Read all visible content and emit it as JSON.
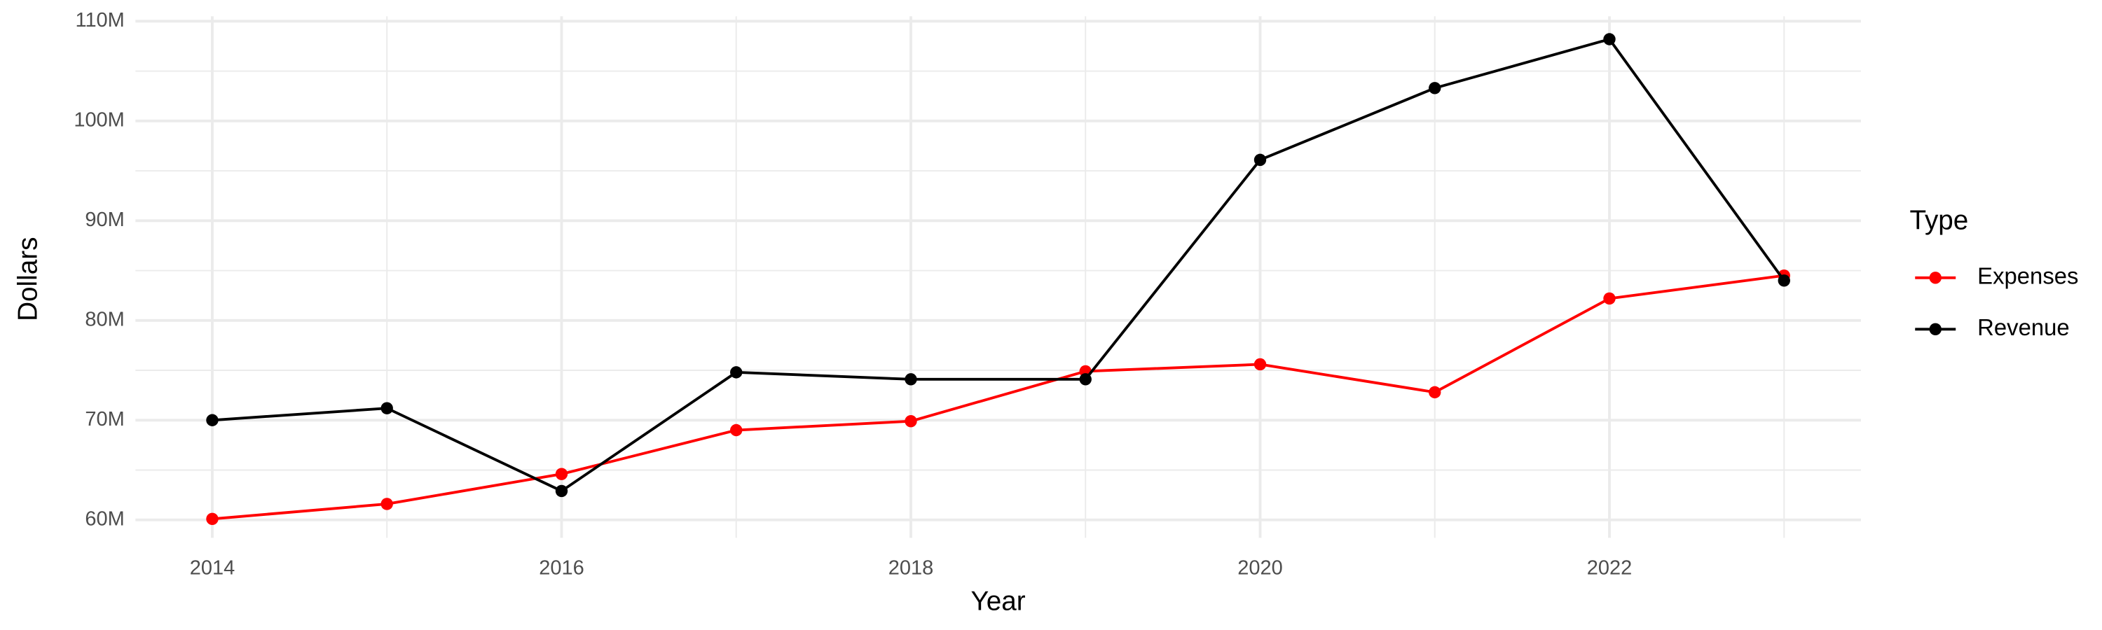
{
  "chart_data": {
    "type": "line",
    "x_label": "Year",
    "y_label": "Dollars",
    "legend_title": "Type",
    "x": [
      2014,
      2015,
      2016,
      2017,
      2018,
      2019,
      2020,
      2021,
      2022,
      2023
    ],
    "series": [
      {
        "name": "Expenses",
        "color": "#ff0000",
        "values": [
          60100000,
          61600000,
          64600000,
          69000000,
          69900000,
          74900000,
          75600000,
          72800000,
          82200000,
          84500000
        ]
      },
      {
        "name": "Revenue",
        "color": "#000000",
        "values": [
          70000000,
          71200000,
          62900000,
          74800000,
          74100000,
          74100000,
          96100000,
          103300000,
          108200000,
          84000000
        ]
      }
    ],
    "xlim": [
      2013.56,
      2023.44
    ],
    "xticks": [
      2014,
      2016,
      2018,
      2020,
      2022
    ],
    "ylim": [
      58200000,
      110500000
    ],
    "yticks": [
      {
        "value": 60000000,
        "label": "60M"
      },
      {
        "value": 70000000,
        "label": "70M"
      },
      {
        "value": 80000000,
        "label": "80M"
      },
      {
        "value": 90000000,
        "label": "90M"
      },
      {
        "value": 100000000,
        "label": "100M"
      },
      {
        "value": 110000000,
        "label": "110M"
      }
    ],
    "grid": true
  }
}
